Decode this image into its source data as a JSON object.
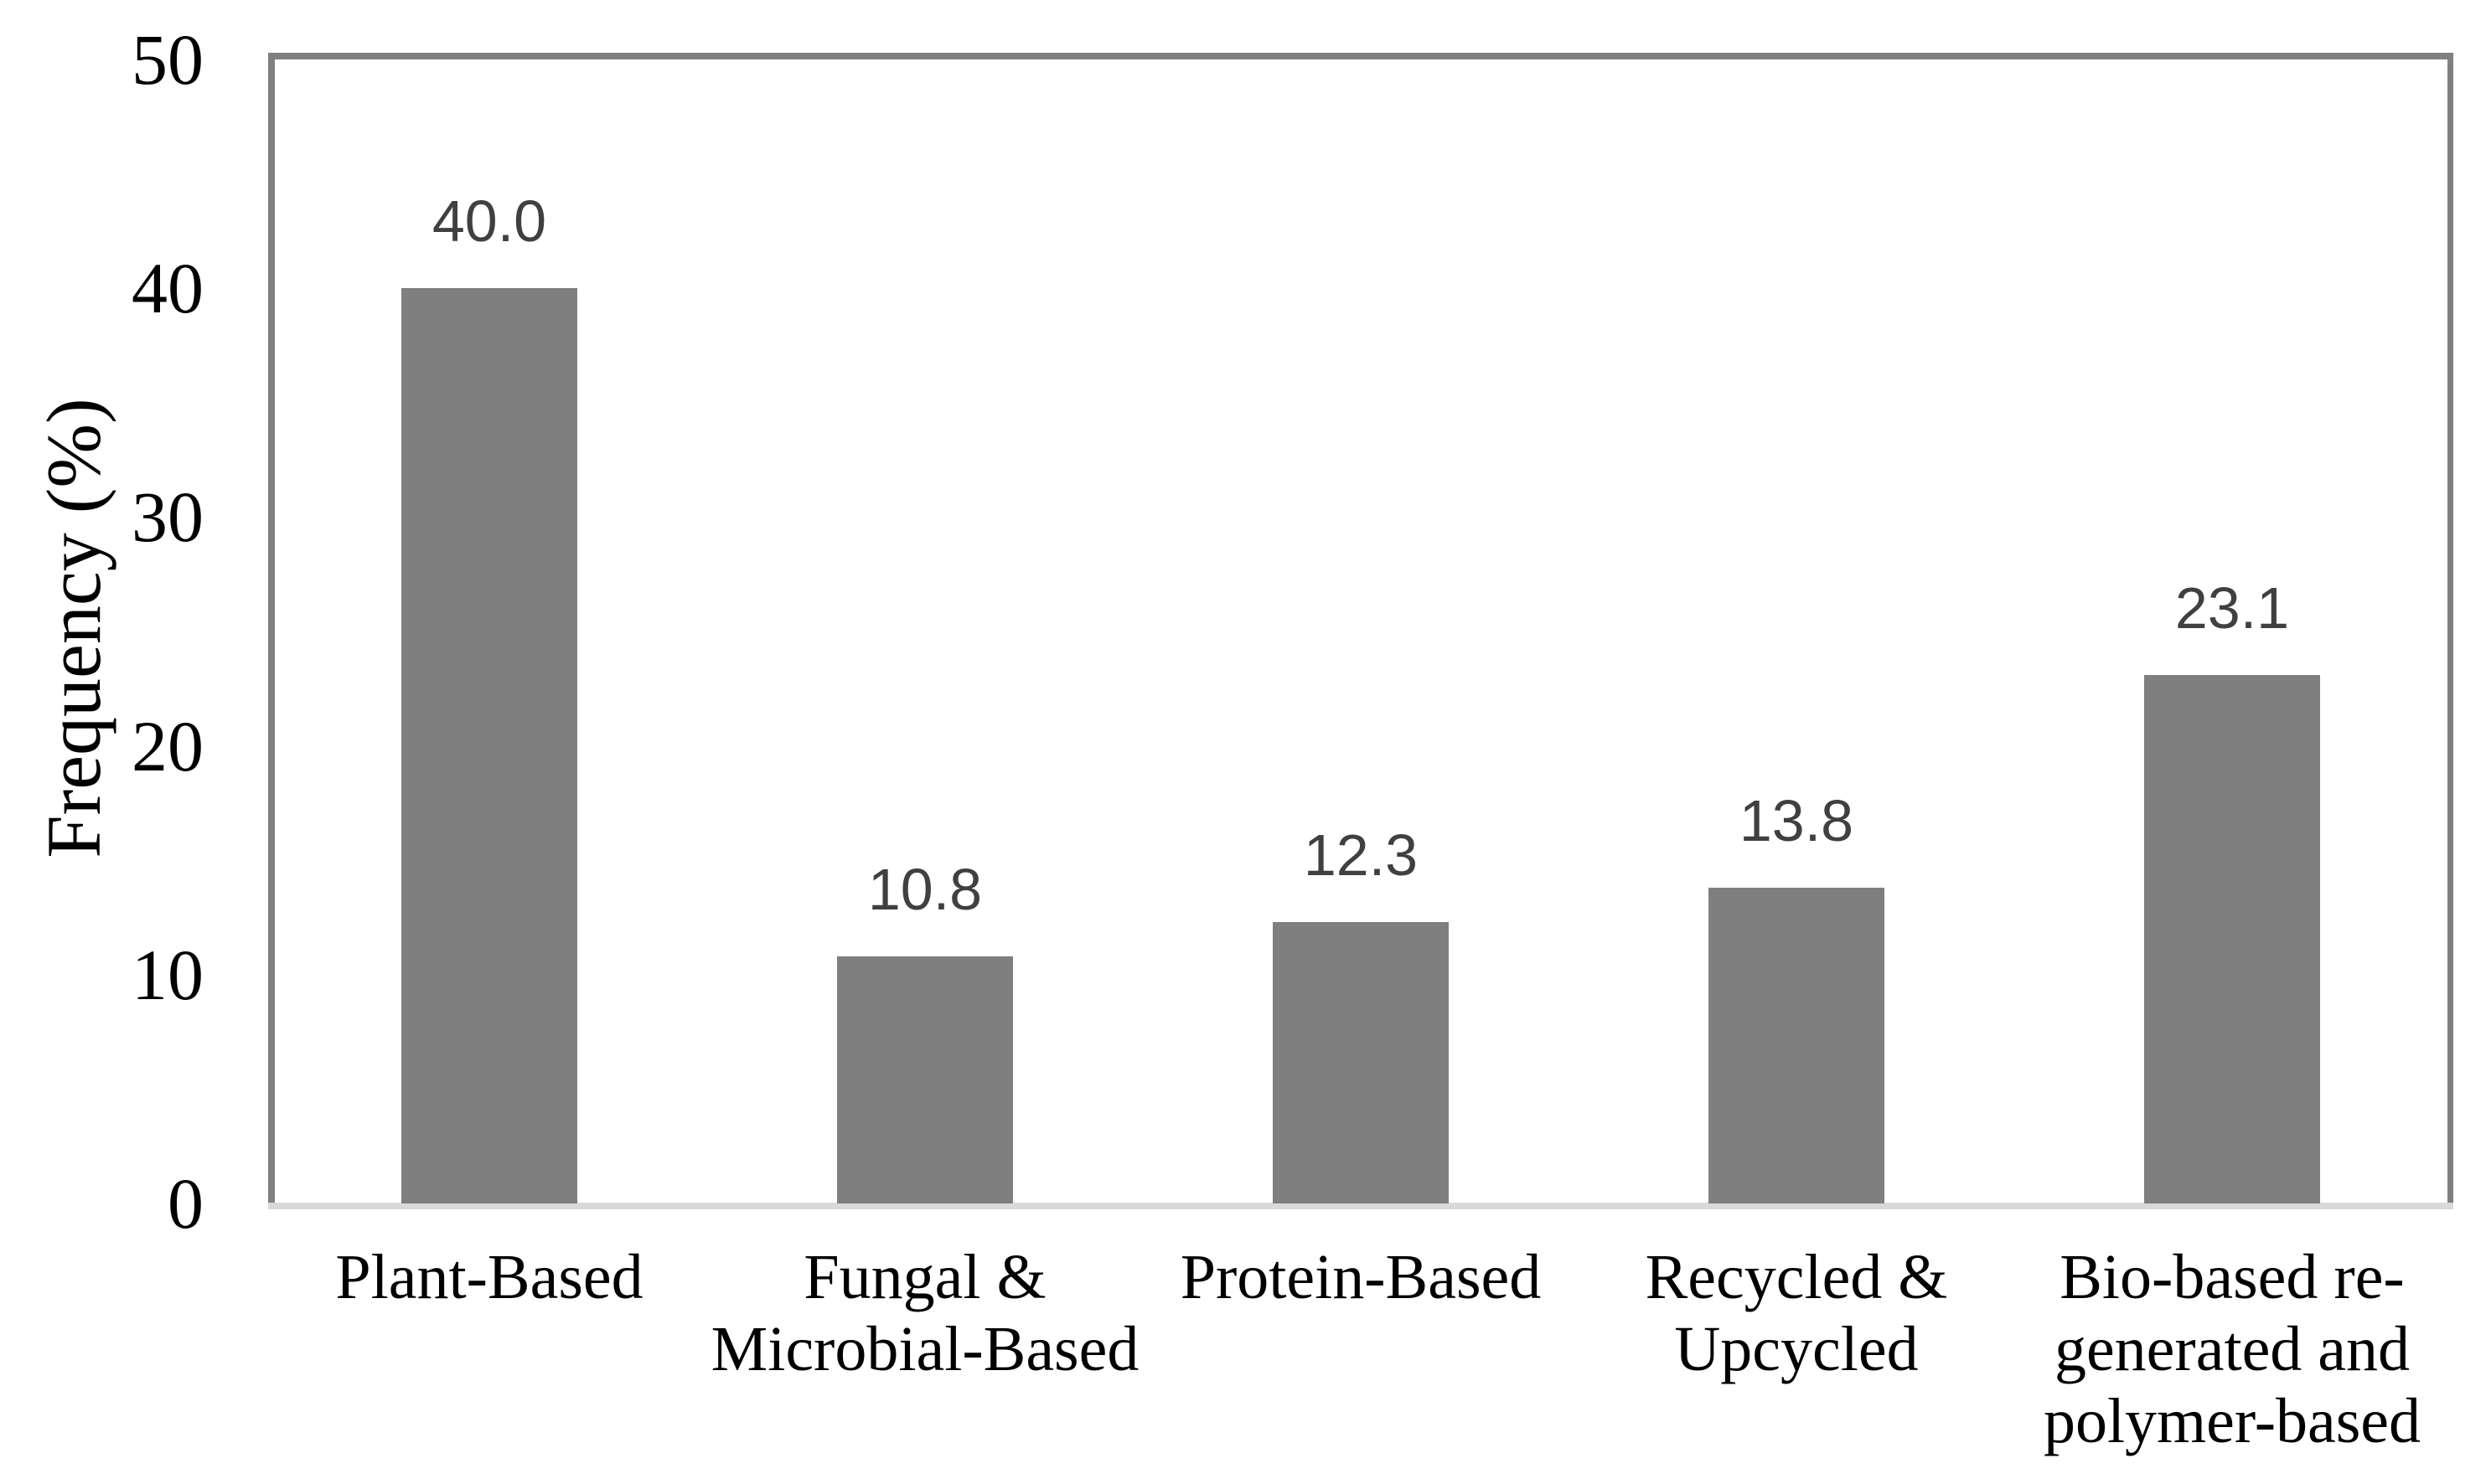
{
  "chart_data": {
    "type": "bar",
    "title": "",
    "xlabel": "",
    "ylabel": "Frequency (%)",
    "categories": [
      "Plant-Based",
      "Fungal &\nMicrobial-Based",
      "Protein-Based",
      "Recycled &\nUpcycled",
      "Bio-based re-\ngenerated and\npolymer-based"
    ],
    "values": [
      40.0,
      10.8,
      12.3,
      13.8,
      23.1
    ],
    "data_labels": [
      "40.0",
      "10.8",
      "12.3",
      "13.8",
      "23.1"
    ],
    "y_ticks": [
      "0",
      "10",
      "20",
      "30",
      "40",
      "50"
    ],
    "y_tick_values": [
      0,
      10,
      20,
      30,
      40,
      50
    ],
    "ylim": [
      0,
      50
    ],
    "grid": false,
    "legend": "none",
    "colors": {
      "bar": "#7f7f7f",
      "data_label": "#404040",
      "axis_text": "#000000",
      "plot_border": "#808080",
      "axis_line": "#d9d9d9",
      "background": "#ffffff"
    }
  }
}
